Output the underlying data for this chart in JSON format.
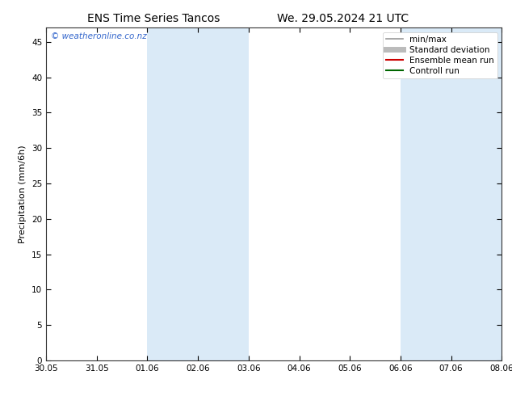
{
  "title_left": "ENS Time Series Tancos",
  "title_right": "We. 29.05.2024 21 UTC",
  "ylabel": "Precipitation (mm/6h)",
  "xlim_start": 0,
  "xlim_end": 9,
  "ylim": [
    0,
    47
  ],
  "yticks": [
    0,
    5,
    10,
    15,
    20,
    25,
    30,
    35,
    40,
    45
  ],
  "xtick_labels": [
    "30.05",
    "31.05",
    "01.06",
    "02.06",
    "03.06",
    "04.06",
    "05.06",
    "06.06",
    "07.06",
    "08.06"
  ],
  "shaded_regions": [
    [
      2.0,
      3.0
    ],
    [
      3.0,
      4.0
    ],
    [
      7.0,
      8.0
    ],
    [
      8.0,
      9.0
    ]
  ],
  "shade_color": "#daeaf7",
  "watermark": "© weatheronline.co.nz",
  "watermark_color": "#3366cc",
  "legend_items": [
    {
      "label": "min/max",
      "color": "#999999",
      "lw": 1.2,
      "ls": "-"
    },
    {
      "label": "Standard deviation",
      "color": "#bbbbbb",
      "lw": 5,
      "ls": "-"
    },
    {
      "label": "Ensemble mean run",
      "color": "#cc0000",
      "lw": 1.5,
      "ls": "-"
    },
    {
      "label": "Controll run",
      "color": "#006600",
      "lw": 1.5,
      "ls": "-"
    }
  ],
  "bg_color": "#ffffff",
  "plot_bg_color": "#ffffff",
  "title_fontsize": 10,
  "axis_fontsize": 8,
  "tick_fontsize": 7.5,
  "legend_fontsize": 7.5
}
